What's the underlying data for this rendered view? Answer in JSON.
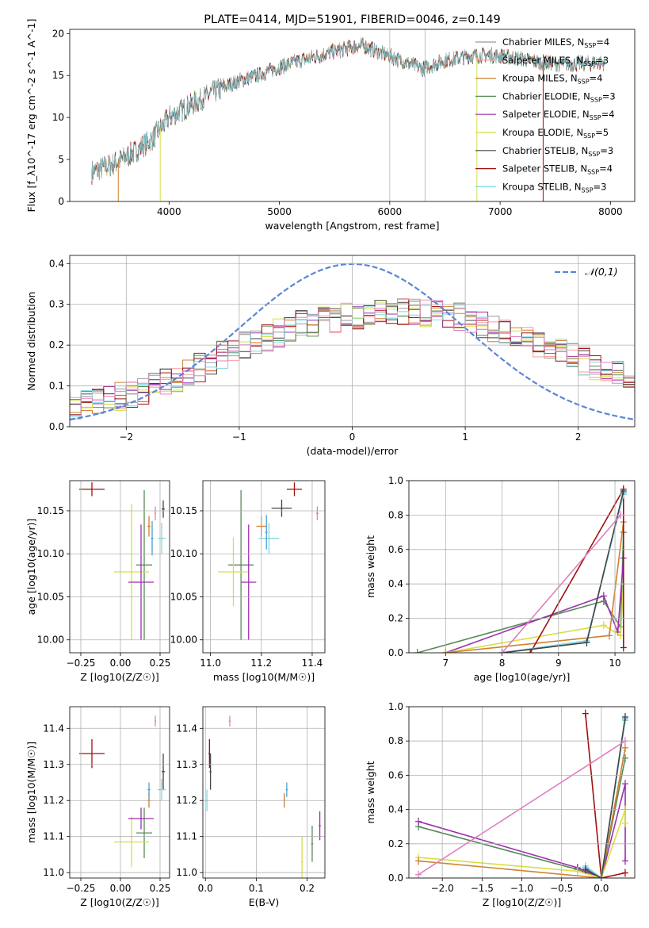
{
  "chart_data": [
    {
      "id": "spectrum",
      "type": "line",
      "title": "PLATE=0414, MJD=51901, FIBERID=0046, z=0.149",
      "xlabel": "wavelength [Angstrom, rest frame]",
      "ylabel": "Flux [f_λ10^-17 erg cm^-2 s^-1 A^-1]",
      "xlim": [
        3100,
        8220
      ],
      "ylim": [
        0,
        20.5
      ],
      "xticks": [
        4000,
        5000,
        6000,
        7000,
        8000
      ],
      "yticks": [
        0,
        5,
        10,
        15,
        20
      ],
      "vlines": [
        6000,
        6320
      ],
      "continuum": {
        "x": [
          3300,
          3500,
          3700,
          3850,
          4000,
          4200,
          4400,
          4600,
          4800,
          5000,
          5200,
          5400,
          5600,
          5750,
          5900,
          6100,
          6300,
          6500,
          6700,
          6900,
          7100,
          7300,
          7500,
          7700,
          7900
        ],
        "y": [
          3.5,
          4.5,
          6,
          7.5,
          10,
          11.5,
          13,
          14.2,
          15,
          16,
          16.8,
          17.5,
          18.2,
          18.6,
          17.8,
          16.8,
          15.8,
          16.8,
          17.3,
          17.4,
          17.2,
          16.7,
          16.4,
          16.4,
          16.5
        ]
      },
      "legend_position": "top-right",
      "legend": [
        {
          "label": "Chabrier MILES, N",
          "sub": "SSP",
          "n": "=4",
          "color": "#999999"
        },
        {
          "label": "Salpeter MILES, N",
          "sub": "SSP",
          "n": "=3",
          "color": "#ff9999"
        },
        {
          "label": "Kroupa MILES, N",
          "sub": "SSP",
          "n": "=4",
          "color": "#d08030"
        },
        {
          "label": "Chabrier ELODIE, N",
          "sub": "SSP",
          "n": "=3",
          "color": "#5a8a5a"
        },
        {
          "label": "Salpeter ELODIE, N",
          "sub": "SSP",
          "n": "=4",
          "color": "#9b2fae"
        },
        {
          "label": "Kroupa ELODIE, N",
          "sub": "SSP",
          "n": "=5",
          "color": "#d6e040"
        },
        {
          "label": "Chabrier STELIB, N",
          "sub": "SSP",
          "n": "=3",
          "color": "#444444"
        },
        {
          "label": "Salpeter STELIB, N",
          "sub": "SSP",
          "n": "=4",
          "color": "#a01010"
        },
        {
          "label": "Kroupa STELIB, N",
          "sub": "SSP",
          "n": "=3",
          "color": "#80d8e0"
        }
      ]
    },
    {
      "id": "residuals",
      "type": "line",
      "xlabel": "(data-model)/error",
      "ylabel": "Normed distribution",
      "xlim": [
        -2.5,
        2.5
      ],
      "ylim": [
        0,
        0.42
      ],
      "xticks": [
        -2,
        -1,
        0,
        1,
        2
      ],
      "yticks": [
        0.0,
        0.1,
        0.2,
        0.3,
        0.4
      ],
      "gaussian_label": "𝒩(0,1)",
      "hist_centers": [
        -2.5,
        -2.3,
        -2.1,
        -1.9,
        -1.7,
        -1.5,
        -1.3,
        -1.1,
        -0.9,
        -0.7,
        -0.5,
        -0.3,
        -0.1,
        0.1,
        0.3,
        0.5,
        0.7,
        0.9,
        1.1,
        1.3,
        1.5,
        1.7,
        1.9,
        2.1,
        2.3,
        2.5
      ],
      "hist_envelope": [
        0.05,
        0.06,
        0.075,
        0.09,
        0.11,
        0.13,
        0.16,
        0.19,
        0.21,
        0.23,
        0.25,
        0.26,
        0.27,
        0.27,
        0.28,
        0.28,
        0.28,
        0.27,
        0.25,
        0.23,
        0.21,
        0.19,
        0.17,
        0.15,
        0.13,
        0.11
      ],
      "hist_colors": [
        "#999999",
        "#ff9999",
        "#d08030",
        "#5a8a5a",
        "#9b2fae",
        "#d6e040",
        "#444444",
        "#a01010",
        "#80d8e0",
        "#e080c0"
      ]
    },
    {
      "id": "age_vs_Z",
      "type": "scatter",
      "xlabel": "Z [log10(Z/Z☉)]",
      "ylabel": "age [log10(age/yr)]",
      "xlim": [
        -0.32,
        0.31
      ],
      "ylim": [
        9.985,
        10.185
      ],
      "xticks": [
        -0.25,
        0.0,
        0.25
      ],
      "yticks": [
        10.0,
        10.05,
        10.1,
        10.15
      ],
      "points": [
        {
          "x": -0.18,
          "y": 10.175,
          "xerr": 0.08,
          "yerr": 0.008,
          "color": "#a01010"
        },
        {
          "x": 0.27,
          "y": 10.152,
          "xerr": 0.01,
          "yerr": 0.01,
          "color": "#444444"
        },
        {
          "x": 0.22,
          "y": 10.147,
          "xerr": 0.005,
          "yerr": 0.008,
          "color": "#e080c0"
        },
        {
          "x": 0.18,
          "y": 10.132,
          "xerr": 0.01,
          "yerr": 0.012,
          "color": "#d08030"
        },
        {
          "x": 0.26,
          "y": 10.118,
          "xerr": 0.025,
          "yerr": 0.018,
          "color": "#80d8e0"
        },
        {
          "x": 0.2,
          "y": 10.118,
          "xerr": 0.008,
          "yerr": 0.02,
          "color": "#4aa0d0"
        },
        {
          "x": 0.15,
          "y": 10.087,
          "xerr": 0.05,
          "yerr": 0.087,
          "color": "#5a8a5a"
        },
        {
          "x": 0.07,
          "y": 10.079,
          "xerr": 0.11,
          "yerr": 0.079,
          "color": "#d6e040"
        },
        {
          "x": 0.13,
          "y": 10.067,
          "xerr": 0.08,
          "yerr": 0.067,
          "color": "#9b2fae"
        }
      ]
    },
    {
      "id": "age_vs_mass",
      "type": "scatter",
      "xlabel": "mass [log10(M/M☉)]",
      "ylabel": "",
      "xlim": [
        10.97,
        11.45
      ],
      "ylim": [
        9.985,
        10.185
      ],
      "xticks": [
        11.0,
        11.2,
        11.4
      ],
      "yticks": [
        10.0,
        10.05,
        10.1,
        10.15
      ],
      "points": [
        {
          "x": 11.33,
          "y": 10.175,
          "xerr": 0.03,
          "yerr": 0.008,
          "color": "#a01010"
        },
        {
          "x": 11.28,
          "y": 10.153,
          "xerr": 0.04,
          "yerr": 0.01,
          "color": "#444444"
        },
        {
          "x": 11.42,
          "y": 10.147,
          "xerr": 0.005,
          "yerr": 0.008,
          "color": "#e080c0"
        },
        {
          "x": 11.2,
          "y": 10.132,
          "xerr": 0.02,
          "yerr": 0.012,
          "color": "#d08030"
        },
        {
          "x": 11.23,
          "y": 10.118,
          "xerr": 0.04,
          "yerr": 0.018,
          "color": "#80d8e0"
        },
        {
          "x": 11.22,
          "y": 10.125,
          "xerr": 0.005,
          "yerr": 0.02,
          "color": "#4aa0d0"
        },
        {
          "x": 11.12,
          "y": 10.087,
          "xerr": 0.05,
          "yerr": 0.087,
          "color": "#5a8a5a"
        },
        {
          "x": 11.09,
          "y": 10.079,
          "xerr": 0.06,
          "yerr": 0.04,
          "color": "#d6e040"
        },
        {
          "x": 11.15,
          "y": 10.067,
          "xerr": 0.03,
          "yerr": 0.067,
          "color": "#9b2fae"
        }
      ]
    },
    {
      "id": "weight_vs_age",
      "type": "line",
      "xlabel": "age [log10(age/yr)]",
      "ylabel": "mass weight",
      "xlim": [
        6.35,
        10.35
      ],
      "ylim": [
        0,
        1.0
      ],
      "xticks": [
        7,
        8,
        9,
        10
      ],
      "yticks": [
        0.0,
        0.2,
        0.4,
        0.6,
        0.8,
        1.0
      ],
      "series": [
        {
          "color": "#5a8a5a",
          "x": [
            6.5,
            9.8,
            10.1,
            10.15
          ],
          "y": [
            0.0,
            0.3,
            0.15,
            0.7
          ]
        },
        {
          "color": "#9b2fae",
          "x": [
            7.0,
            9.8,
            10.05,
            10.15
          ],
          "y": [
            0.0,
            0.33,
            0.12,
            0.55
          ]
        },
        {
          "color": "#d6e040",
          "x": [
            7.0,
            9.8,
            10.1,
            10.15
          ],
          "y": [
            0.0,
            0.16,
            0.1,
            0.4
          ]
        },
        {
          "color": "#d08030",
          "x": [
            7.0,
            9.9,
            10.15
          ],
          "y": [
            0.0,
            0.1,
            0.76
          ]
        },
        {
          "color": "#a01010",
          "x": [
            8.5,
            10.15,
            10.15
          ],
          "y": [
            0.0,
            0.95,
            0.03
          ]
        },
        {
          "color": "#4aa0d0",
          "x": [
            8.0,
            9.5,
            10.15
          ],
          "y": [
            0.0,
            0.06,
            0.93
          ]
        },
        {
          "color": "#80d8e0",
          "x": [
            8.0,
            9.5,
            10.15
          ],
          "y": [
            0.0,
            0.07,
            0.92
          ]
        },
        {
          "color": "#444444",
          "x": [
            8.0,
            9.5,
            10.15
          ],
          "y": [
            0.0,
            0.06,
            0.94
          ]
        },
        {
          "color": "#e080c0",
          "x": [
            8.0,
            10.1
          ],
          "y": [
            0.0,
            0.8
          ]
        }
      ]
    },
    {
      "id": "mass_vs_Z",
      "type": "scatter",
      "xlabel": "Z [log10(Z/Z☉)]",
      "ylabel": "mass [log10(M/M☉)]",
      "xlim": [
        -0.32,
        0.31
      ],
      "ylim": [
        10.985,
        11.46
      ],
      "xticks": [
        -0.25,
        0.0,
        0.25
      ],
      "yticks": [
        11.0,
        11.1,
        11.2,
        11.3,
        11.4
      ],
      "points": [
        {
          "x": -0.18,
          "y": 11.33,
          "xerr": 0.08,
          "yerr": 0.04,
          "color": "#a01010"
        },
        {
          "x": 0.27,
          "y": 11.28,
          "xerr": 0.01,
          "yerr": 0.05,
          "color": "#444444"
        },
        {
          "x": 0.22,
          "y": 11.42,
          "xerr": 0.005,
          "yerr": 0.015,
          "color": "#e080c0"
        },
        {
          "x": 0.18,
          "y": 11.2,
          "xerr": 0.01,
          "yerr": 0.02,
          "color": "#d08030"
        },
        {
          "x": 0.26,
          "y": 11.23,
          "xerr": 0.025,
          "yerr": 0.03,
          "color": "#80d8e0"
        },
        {
          "x": 0.18,
          "y": 11.23,
          "xerr": 0.008,
          "yerr": 0.02,
          "color": "#4aa0d0"
        },
        {
          "x": 0.15,
          "y": 11.11,
          "xerr": 0.05,
          "yerr": 0.07,
          "color": "#5a8a5a"
        },
        {
          "x": 0.07,
          "y": 11.085,
          "xerr": 0.11,
          "yerr": 0.07,
          "color": "#d6e040"
        },
        {
          "x": 0.13,
          "y": 11.15,
          "xerr": 0.08,
          "yerr": 0.03,
          "color": "#9b2fae"
        }
      ]
    },
    {
      "id": "mass_vs_ebv",
      "type": "scatter",
      "xlabel": "E(B-V)",
      "ylabel": "",
      "xlim": [
        -0.005,
        0.235
      ],
      "ylim": [
        10.985,
        11.46
      ],
      "xticks": [
        0.0,
        0.1,
        0.2
      ],
      "yticks": [
        11.0,
        11.1,
        11.2,
        11.3,
        11.4
      ],
      "points": [
        {
          "x": 0.008,
          "y": 11.33,
          "xerr": 0.002,
          "yerr": 0.04,
          "color": "#a01010"
        },
        {
          "x": 0.01,
          "y": 11.28,
          "xerr": 0.002,
          "yerr": 0.05,
          "color": "#444444"
        },
        {
          "x": 0.048,
          "y": 11.42,
          "xerr": 0.002,
          "yerr": 0.015,
          "color": "#e080c0"
        },
        {
          "x": 0.155,
          "y": 11.2,
          "xerr": 0.002,
          "yerr": 0.02,
          "color": "#d08030"
        },
        {
          "x": 0.003,
          "y": 11.2,
          "xerr": 0.002,
          "yerr": 0.03,
          "color": "#80d8e0"
        },
        {
          "x": 0.16,
          "y": 11.23,
          "xerr": 0.002,
          "yerr": 0.02,
          "color": "#4aa0d0"
        },
        {
          "x": 0.21,
          "y": 11.08,
          "xerr": 0.002,
          "yerr": 0.05,
          "color": "#5a8a5a"
        },
        {
          "x": 0.19,
          "y": 11.03,
          "xerr": 0.002,
          "yerr": 0.07,
          "color": "#d6e040"
        },
        {
          "x": 0.225,
          "y": 11.13,
          "xerr": 0.002,
          "yerr": 0.04,
          "color": "#9b2fae"
        }
      ]
    },
    {
      "id": "weight_vs_Z",
      "type": "line",
      "xlabel": "Z [log10(Z/Z☉)]",
      "ylabel": "mass weight",
      "xlim": [
        -2.42,
        0.42
      ],
      "ylim": [
        0,
        1.0
      ],
      "xticks": [
        -2.0,
        -1.5,
        -1.0,
        -0.5,
        0.0
      ],
      "yticks": [
        0.0,
        0.2,
        0.4,
        0.6,
        0.8,
        1.0
      ],
      "series": [
        {
          "color": "#5a8a5a",
          "x": [
            -2.3,
            -0.3,
            0.0,
            0.3
          ],
          "y": [
            0.3,
            0.05,
            0.0,
            0.7
          ]
        },
        {
          "color": "#9b2fae",
          "x": [
            -2.3,
            -0.3,
            0.0,
            0.3,
            0.3
          ],
          "y": [
            0.33,
            0.06,
            0.0,
            0.55,
            0.1
          ]
        },
        {
          "color": "#d6e040",
          "x": [
            -2.3,
            -0.3,
            0.0,
            0.3,
            0.3
          ],
          "y": [
            0.12,
            0.04,
            0.0,
            0.4,
            0.32
          ]
        },
        {
          "color": "#d08030",
          "x": [
            -2.3,
            0.0,
            0.3
          ],
          "y": [
            0.1,
            0.0,
            0.76
          ]
        },
        {
          "color": "#a01010",
          "x": [
            -0.2,
            0.0,
            0.3
          ],
          "y": [
            0.96,
            0.0,
            0.03
          ]
        },
        {
          "color": "#4aa0d0",
          "x": [
            -0.2,
            0.0,
            0.3
          ],
          "y": [
            0.06,
            0.0,
            0.93
          ]
        },
        {
          "color": "#80d8e0",
          "x": [
            -0.2,
            0.0,
            0.3
          ],
          "y": [
            0.07,
            0.0,
            0.92
          ]
        },
        {
          "color": "#444444",
          "x": [
            -0.2,
            0.0,
            0.3
          ],
          "y": [
            0.05,
            0.0,
            0.94
          ]
        },
        {
          "color": "#e080c0",
          "x": [
            -2.3,
            0.3
          ],
          "y": [
            0.02,
            0.8
          ]
        }
      ]
    }
  ]
}
